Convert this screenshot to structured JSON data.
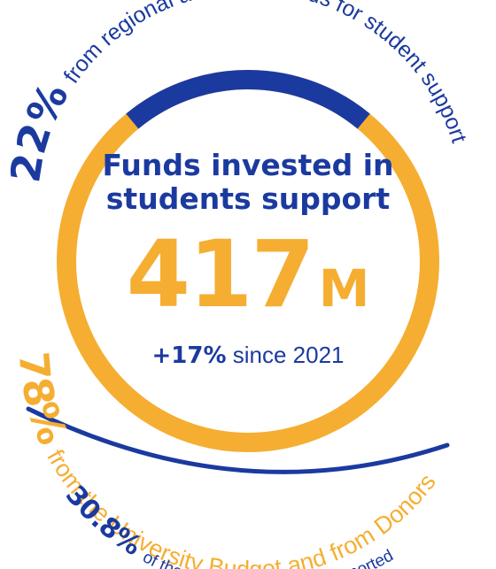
{
  "colors": {
    "blue": "#1b3aa0",
    "orange": "#f5ae32"
  },
  "title": {
    "line1": "Funds invested in",
    "line2": "students support"
  },
  "total": {
    "value": "417",
    "unit": "M"
  },
  "growth": {
    "value": "+17%",
    "text": "since 2021"
  },
  "segments": {
    "regional": {
      "percent": "22%",
      "text": "from regional and state funds for student support"
    },
    "university": {
      "percent": "78%",
      "text": "from the University Budget and from Donors"
    },
    "population": {
      "percent": "30.8%",
      "text": "of the student population supported"
    }
  },
  "chart_data": {
    "type": "pie",
    "title": "Funds invested in students support",
    "total": "417M",
    "series": [
      {
        "name": "from regional and state funds for student support",
        "value": 22
      },
      {
        "name": "from the University Budget and from Donors",
        "value": 78
      }
    ]
  }
}
